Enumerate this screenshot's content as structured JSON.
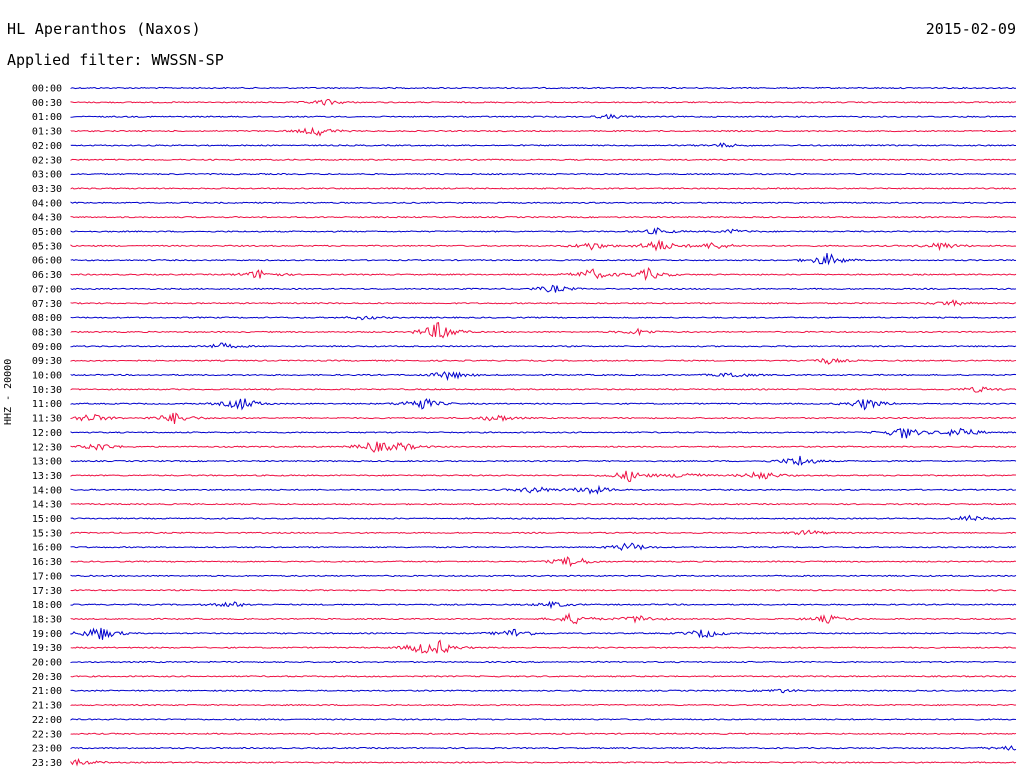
{
  "header": {
    "station": "HL Aperanthos (Naxos)",
    "date": "2015-02-09",
    "filter": "Applied filter: WWSSN-SP"
  },
  "chart_data": {
    "type": "line",
    "title": "HL Aperanthos (Naxos)",
    "ylabel": "HHZ - 20000",
    "xlabel": "",
    "trace_colors": [
      "#0000cc",
      "#ee1144"
    ],
    "rows": [
      {
        "label": "00:00",
        "events": []
      },
      {
        "label": "00:30",
        "events": [
          {
            "x": 0.27,
            "amp": 3
          }
        ]
      },
      {
        "label": "01:00",
        "events": [
          {
            "x": 0.57,
            "amp": 2
          }
        ]
      },
      {
        "label": "01:30",
        "events": [
          {
            "x": 0.26,
            "amp": 5
          }
        ]
      },
      {
        "label": "02:00",
        "events": [
          {
            "x": 0.69,
            "amp": 2
          }
        ]
      },
      {
        "label": "02:30",
        "events": []
      },
      {
        "label": "03:00",
        "events": []
      },
      {
        "label": "03:30",
        "events": []
      },
      {
        "label": "04:00",
        "events": []
      },
      {
        "label": "04:30",
        "events": []
      },
      {
        "label": "05:00",
        "events": [
          {
            "x": 0.62,
            "amp": 3
          },
          {
            "x": 0.7,
            "amp": 2
          }
        ]
      },
      {
        "label": "05:30",
        "events": [
          {
            "x": 0.55,
            "amp": 4
          },
          {
            "x": 0.62,
            "amp": 7
          },
          {
            "x": 0.68,
            "amp": 4
          },
          {
            "x": 0.92,
            "amp": 4
          }
        ]
      },
      {
        "label": "06:00",
        "events": [
          {
            "x": 0.8,
            "amp": 7
          }
        ]
      },
      {
        "label": "06:30",
        "events": [
          {
            "x": 0.2,
            "amp": 5
          },
          {
            "x": 0.55,
            "amp": 6
          },
          {
            "x": 0.61,
            "amp": 6
          }
        ]
      },
      {
        "label": "07:00",
        "events": [
          {
            "x": 0.51,
            "amp": 4
          }
        ]
      },
      {
        "label": "07:30",
        "events": [
          {
            "x": 0.93,
            "amp": 3
          }
        ]
      },
      {
        "label": "08:00",
        "events": [
          {
            "x": 0.31,
            "amp": 2
          }
        ]
      },
      {
        "label": "08:30",
        "events": [
          {
            "x": 0.39,
            "amp": 11
          },
          {
            "x": 0.6,
            "amp": 3
          }
        ]
      },
      {
        "label": "09:00",
        "events": [
          {
            "x": 0.16,
            "amp": 3
          }
        ]
      },
      {
        "label": "09:30",
        "events": [
          {
            "x": 0.8,
            "amp": 3
          }
        ]
      },
      {
        "label": "10:00",
        "events": [
          {
            "x": 0.4,
            "amp": 5
          },
          {
            "x": 0.7,
            "amp": 3
          }
        ]
      },
      {
        "label": "10:30",
        "events": [
          {
            "x": 0.96,
            "amp": 3
          }
        ]
      },
      {
        "label": "11:00",
        "events": [
          {
            "x": 0.18,
            "amp": 7
          },
          {
            "x": 0.37,
            "amp": 7
          },
          {
            "x": 0.84,
            "amp": 6
          }
        ]
      },
      {
        "label": "11:30",
        "events": [
          {
            "x": 0.02,
            "amp": 5
          },
          {
            "x": 0.11,
            "amp": 6
          },
          {
            "x": 0.45,
            "amp": 4
          }
        ]
      },
      {
        "label": "12:00",
        "events": [
          {
            "x": 0.88,
            "amp": 7
          },
          {
            "x": 0.94,
            "amp": 6
          }
        ]
      },
      {
        "label": "12:30",
        "events": [
          {
            "x": 0.03,
            "amp": 4
          },
          {
            "x": 0.32,
            "amp": 6
          },
          {
            "x": 0.35,
            "amp": 4
          }
        ]
      },
      {
        "label": "13:00",
        "events": [
          {
            "x": 0.77,
            "amp": 6
          }
        ]
      },
      {
        "label": "13:30",
        "events": [
          {
            "x": 0.59,
            "amp": 6
          },
          {
            "x": 0.65,
            "amp": 4
          },
          {
            "x": 0.73,
            "amp": 5
          }
        ]
      },
      {
        "label": "14:00",
        "events": [
          {
            "x": 0.49,
            "amp": 4
          },
          {
            "x": 0.55,
            "amp": 5
          }
        ]
      },
      {
        "label": "14:30",
        "events": []
      },
      {
        "label": "15:00",
        "events": [
          {
            "x": 0.95,
            "amp": 3
          }
        ]
      },
      {
        "label": "15:30",
        "events": [
          {
            "x": 0.78,
            "amp": 3
          }
        ]
      },
      {
        "label": "16:00",
        "events": [
          {
            "x": 0.59,
            "amp": 5
          }
        ]
      },
      {
        "label": "16:30",
        "events": [
          {
            "x": 0.53,
            "amp": 6
          }
        ]
      },
      {
        "label": "17:00",
        "events": []
      },
      {
        "label": "17:30",
        "events": []
      },
      {
        "label": "18:00",
        "events": [
          {
            "x": 0.17,
            "amp": 3
          },
          {
            "x": 0.51,
            "amp": 3
          }
        ]
      },
      {
        "label": "18:30",
        "events": [
          {
            "x": 0.53,
            "amp": 6
          },
          {
            "x": 0.6,
            "amp": 4
          },
          {
            "x": 0.8,
            "amp": 4
          }
        ]
      },
      {
        "label": "19:00",
        "events": [
          {
            "x": 0.03,
            "amp": 8
          },
          {
            "x": 0.47,
            "amp": 5
          },
          {
            "x": 0.67,
            "amp": 5
          }
        ]
      },
      {
        "label": "19:30",
        "events": [
          {
            "x": 0.37,
            "amp": 5
          },
          {
            "x": 0.39,
            "amp": 6
          }
        ]
      },
      {
        "label": "20:00",
        "events": []
      },
      {
        "label": "20:30",
        "events": []
      },
      {
        "label": "21:00",
        "events": [
          {
            "x": 0.75,
            "amp": 2
          }
        ]
      },
      {
        "label": "21:30",
        "events": []
      },
      {
        "label": "22:00",
        "events": []
      },
      {
        "label": "22:30",
        "events": []
      },
      {
        "label": "23:00",
        "events": [
          {
            "x": 0.99,
            "amp": 3
          }
        ]
      },
      {
        "label": "23:30",
        "events": [
          {
            "x": 0.01,
            "amp": 3
          }
        ]
      }
    ]
  }
}
